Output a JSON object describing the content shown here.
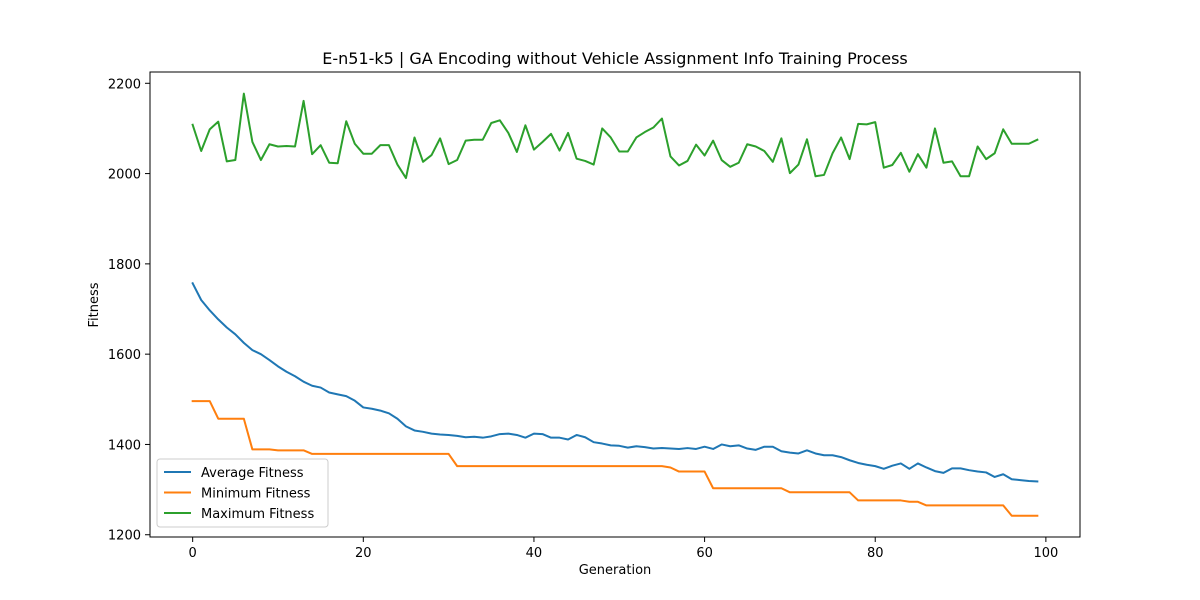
{
  "chart_data": {
    "type": "line",
    "title": "E-n51-k5 | GA Encoding without Vehicle Assignment Info Training Process",
    "xlabel": "Generation",
    "ylabel": "Fitness",
    "xlim": [
      -5,
      104
    ],
    "ylim": [
      1195,
      2225
    ],
    "xticks": [
      0,
      20,
      40,
      60,
      80,
      100
    ],
    "yticks": [
      1200,
      1400,
      1600,
      1800,
      2000,
      2200
    ],
    "grid": false,
    "legend_position": "lower-left",
    "series": [
      {
        "name": "Average Fitness",
        "color": "#1f77b4",
        "y": [
          1757,
          1720,
          1697,
          1677,
          1659,
          1644,
          1625,
          1609,
          1600,
          1587,
          1573,
          1561,
          1551,
          1539,
          1530,
          1526,
          1515,
          1511,
          1507,
          1497,
          1482,
          1479,
          1475,
          1469,
          1457,
          1440,
          1431,
          1428,
          1424,
          1422,
          1421,
          1419,
          1416,
          1417,
          1415,
          1418,
          1423,
          1424,
          1421,
          1415,
          1424,
          1423,
          1415,
          1415,
          1411,
          1421,
          1416,
          1405,
          1402,
          1398,
          1397,
          1393,
          1396,
          1394,
          1391,
          1392,
          1391,
          1390,
          1392,
          1390,
          1395,
          1390,
          1400,
          1396,
          1398,
          1391,
          1388,
          1395,
          1395,
          1385,
          1382,
          1380,
          1387,
          1380,
          1376,
          1376,
          1372,
          1365,
          1359,
          1355,
          1352,
          1346,
          1353,
          1358,
          1346,
          1358,
          1349,
          1341,
          1337,
          1347,
          1347,
          1343,
          1340,
          1338,
          1328,
          1334,
          1323,
          1321,
          1319,
          1318
        ]
      },
      {
        "name": "Minimum Fitness",
        "color": "#ff7f0e",
        "y": [
          1496,
          1496,
          1496,
          1457,
          1457,
          1457,
          1457,
          1389,
          1389,
          1389,
          1387,
          1387,
          1387,
          1387,
          1379,
          1379,
          1379,
          1379,
          1379,
          1379,
          1379,
          1379,
          1379,
          1379,
          1379,
          1379,
          1379,
          1379,
          1379,
          1379,
          1379,
          1352,
          1352,
          1352,
          1352,
          1352,
          1352,
          1352,
          1352,
          1352,
          1352,
          1352,
          1352,
          1352,
          1352,
          1352,
          1352,
          1352,
          1352,
          1352,
          1352,
          1352,
          1352,
          1352,
          1352,
          1352,
          1349,
          1340,
          1340,
          1340,
          1340,
          1303,
          1303,
          1303,
          1303,
          1303,
          1303,
          1303,
          1303,
          1303,
          1294,
          1294,
          1294,
          1294,
          1294,
          1294,
          1294,
          1294,
          1276,
          1276,
          1276,
          1276,
          1276,
          1276,
          1273,
          1273,
          1265,
          1265,
          1265,
          1265,
          1265,
          1265,
          1265,
          1265,
          1265,
          1265,
          1242,
          1242,
          1242,
          1242
        ]
      },
      {
        "name": "Maximum Fitness",
        "color": "#2ca02c",
        "y": [
          2108,
          2050,
          2098,
          2115,
          2027,
          2030,
          2177,
          2070,
          2030,
          2065,
          2060,
          2061,
          2060,
          2161,
          2043,
          2063,
          2024,
          2023,
          2116,
          2066,
          2044,
          2044,
          2063,
          2063,
          2020,
          1990,
          2080,
          2026,
          2041,
          2078,
          2021,
          2030,
          2073,
          2075,
          2075,
          2112,
          2118,
          2090,
          2048,
          2107,
          2053,
          2070,
          2088,
          2051,
          2090,
          2033,
          2028,
          2020,
          2100,
          2080,
          2049,
          2049,
          2080,
          2092,
          2102,
          2122,
          2038,
          2018,
          2028,
          2064,
          2040,
          2073,
          2030,
          2015,
          2024,
          2065,
          2060,
          2050,
          2026,
          2078,
          2001,
          2020,
          2076,
          1994,
          1997,
          2045,
          2080,
          2032,
          2110,
          2109,
          2114,
          2013,
          2019,
          2046,
          2004,
          2043,
          2013,
          2100,
          2024,
          2027,
          1994,
          1994,
          2060,
          2032,
          2045,
          2098,
          2066,
          2066,
          2066,
          2075
        ]
      }
    ]
  }
}
